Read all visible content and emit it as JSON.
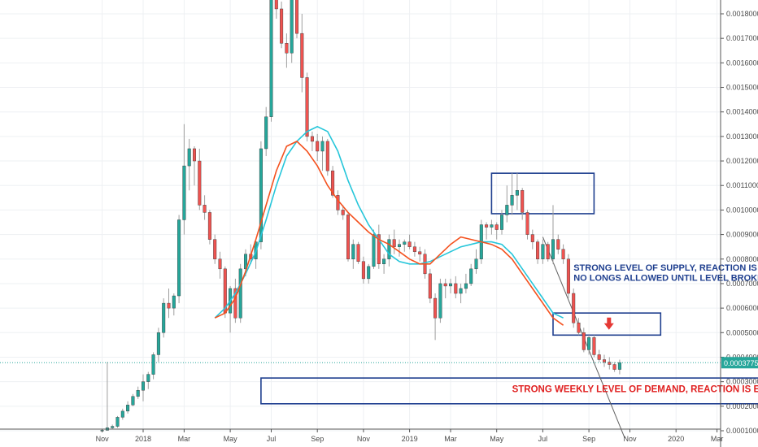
{
  "chart_data": {
    "type": "candlestick",
    "timeframe": "weekly",
    "y_axis_side": "right",
    "ylim": [
      0.0001,
      0.00188
    ],
    "x_ticks": [
      {
        "label": "Nov",
        "week": -8
      },
      {
        "label": "2018",
        "week": 0
      },
      {
        "label": "Mar",
        "week": 8
      },
      {
        "label": "May",
        "week": 17
      },
      {
        "label": "Jul",
        "week": 25
      },
      {
        "label": "Sep",
        "week": 34
      },
      {
        "label": "Nov",
        "week": 43
      },
      {
        "label": "2019",
        "week": 52
      },
      {
        "label": "Mar",
        "week": 60
      },
      {
        "label": "May",
        "week": 69
      },
      {
        "label": "Jul",
        "week": 78
      },
      {
        "label": "Sep",
        "week": 87
      },
      {
        "label": "Nov",
        "week": 95
      },
      {
        "label": "2020",
        "week": 104
      },
      {
        "label": "Mar",
        "week": 112
      }
    ],
    "y_ticks": [
      "0.0001000",
      "0.0002000",
      "0.0003000",
      "0.0004000",
      "0.0005000",
      "0.0006000",
      "0.0007000",
      "0.0008000",
      "0.0009000",
      "0.0010000",
      "0.0011000",
      "0.0012000",
      "0.0013000",
      "0.0014000",
      "0.0015000",
      "0.0016000",
      "0.0017000",
      "0.0018000"
    ],
    "last_price": {
      "label": "0.0003775",
      "value": 0.0003775
    },
    "candles_ohlc": [
      [
        0.0001,
        0.000105,
        9.8e-05,
        0.000102
      ],
      [
        0.000102,
        0.00038,
        0.0001,
        0.000112
      ],
      [
        0.000112,
        0.000125,
        0.000105,
        0.000118
      ],
      [
        0.000118,
        0.00016,
        0.000112,
        0.000155
      ],
      [
        0.000155,
        0.00019,
        0.000145,
        0.00018
      ],
      [
        0.00018,
        0.00022,
        0.00017,
        0.000205
      ],
      [
        0.000205,
        0.00025,
        0.0002,
        0.00024
      ],
      [
        0.00024,
        0.00028,
        0.00023,
        0.000265
      ],
      [
        0.000265,
        0.00033,
        0.00022,
        0.0003
      ],
      [
        0.0003,
        0.00034,
        0.00027,
        0.00033
      ],
      [
        0.00033,
        0.00042,
        0.00031,
        0.00041
      ],
      [
        0.00041,
        0.00052,
        0.00038,
        0.0005
      ],
      [
        0.0005,
        0.00064,
        0.00048,
        0.00062
      ],
      [
        0.00062,
        0.00068,
        0.00056,
        0.0006
      ],
      [
        0.0006,
        0.00066,
        0.00057,
        0.00065
      ],
      [
        0.00065,
        0.00098,
        0.00062,
        0.00096
      ],
      [
        0.00096,
        0.00135,
        0.0009,
        0.00118
      ],
      [
        0.00118,
        0.00129,
        0.00108,
        0.00125
      ],
      [
        0.00125,
        0.00126,
        0.0011,
        0.0012
      ],
      [
        0.0012,
        0.00125,
        0.001,
        0.00102
      ],
      [
        0.00102,
        0.00106,
        0.00096,
        0.00099
      ],
      [
        0.00099,
        0.001,
        0.00086,
        0.00088
      ],
      [
        0.00088,
        0.0009,
        0.00078,
        0.0008
      ],
      [
        0.0008,
        0.00083,
        0.00072,
        0.00076
      ],
      [
        0.00076,
        0.00077,
        0.00056,
        0.00058
      ],
      [
        0.00058,
        0.00069,
        0.0005,
        0.00068
      ],
      [
        0.00068,
        0.00072,
        0.00054,
        0.00056
      ],
      [
        0.00056,
        0.00078,
        0.00054,
        0.00076
      ],
      [
        0.00076,
        0.00084,
        0.00073,
        0.00082
      ],
      [
        0.00082,
        0.00086,
        0.00078,
        0.0008
      ],
      [
        0.0008,
        0.00088,
        0.00076,
        0.00087
      ],
      [
        0.00087,
        0.00128,
        0.00084,
        0.00125
      ],
      [
        0.00125,
        0.00142,
        0.00122,
        0.00138
      ],
      [
        0.00138,
        0.0019,
        0.00136,
        0.00188
      ],
      [
        0.00188,
        0.00195,
        0.00178,
        0.00182
      ],
      [
        0.00182,
        0.00185,
        0.00166,
        0.00168
      ],
      [
        0.00168,
        0.00172,
        0.00158,
        0.00164
      ],
      [
        0.00164,
        0.00188,
        0.0016,
        0.00186
      ],
      [
        0.00186,
        0.00195,
        0.0017,
        0.00172
      ],
      [
        0.00172,
        0.0018,
        0.00148,
        0.00154
      ],
      [
        0.00154,
        0.00156,
        0.00128,
        0.0013
      ],
      [
        0.0013,
        0.00132,
        0.00124,
        0.00128
      ],
      [
        0.00128,
        0.00131,
        0.0012,
        0.00124
      ],
      [
        0.00124,
        0.0013,
        0.00116,
        0.00128
      ],
      [
        0.00128,
        0.00129,
        0.00114,
        0.00116
      ],
      [
        0.00116,
        0.00118,
        0.00105,
        0.00106
      ],
      [
        0.00106,
        0.00108,
        0.00098,
        0.001
      ],
      [
        0.001,
        0.00102,
        0.00096,
        0.00098
      ],
      [
        0.00098,
        0.00099,
        0.00079,
        0.0008
      ],
      [
        0.0008,
        0.00088,
        0.00076,
        0.00086
      ],
      [
        0.00086,
        0.00087,
        0.00078,
        0.00079
      ],
      [
        0.00079,
        0.00081,
        0.0007,
        0.00072
      ],
      [
        0.00072,
        0.00078,
        0.0007,
        0.00077
      ],
      [
        0.00077,
        0.00092,
        0.00076,
        0.0009
      ],
      [
        0.0009,
        0.00094,
        0.00076,
        0.00078
      ],
      [
        0.00078,
        0.00082,
        0.00074,
        0.0008
      ],
      [
        0.0008,
        0.0009,
        0.00077,
        0.00088
      ],
      [
        0.00088,
        0.00092,
        0.00082,
        0.00085
      ],
      [
        0.00085,
        0.00088,
        0.00081,
        0.00086
      ],
      [
        0.00086,
        0.00088,
        0.00083,
        0.00087
      ],
      [
        0.00087,
        0.0009,
        0.00084,
        0.00085
      ],
      [
        0.00085,
        0.00087,
        0.00081,
        0.00083
      ],
      [
        0.00083,
        0.00085,
        0.00079,
        0.00082
      ],
      [
        0.00082,
        0.00084,
        0.00072,
        0.00074
      ],
      [
        0.00074,
        0.00076,
        0.00062,
        0.00064
      ],
      [
        0.00064,
        0.00066,
        0.00047,
        0.00056
      ],
      [
        0.00056,
        0.00072,
        0.00054,
        0.0007
      ],
      [
        0.0007,
        0.00072,
        0.00064,
        0.00069
      ],
      [
        0.00069,
        0.00072,
        0.00066,
        0.0007
      ],
      [
        0.0007,
        0.00073,
        0.00064,
        0.00066
      ],
      [
        0.00066,
        0.0007,
        0.00062,
        0.00068
      ],
      [
        0.00068,
        0.00074,
        0.00066,
        0.0007
      ],
      [
        0.0007,
        0.00078,
        0.00069,
        0.00076
      ],
      [
        0.00076,
        0.00084,
        0.00074,
        0.0008
      ],
      [
        0.0008,
        0.00096,
        0.00078,
        0.00094
      ],
      [
        0.00094,
        0.00095,
        0.00088,
        0.00093
      ],
      [
        0.00093,
        0.00096,
        0.0009,
        0.00094
      ],
      [
        0.00094,
        0.00095,
        0.00088,
        0.00092
      ],
      [
        0.00092,
        0.001,
        0.0009,
        0.00098
      ],
      [
        0.00098,
        0.0011,
        0.00095,
        0.00102
      ],
      [
        0.00102,
        0.00115,
        0.00098,
        0.00106
      ],
      [
        0.00106,
        0.00115,
        0.001,
        0.00108
      ],
      [
        0.00108,
        0.00109,
        0.00096,
        0.00099
      ],
      [
        0.00099,
        0.001,
        0.00088,
        0.0009
      ],
      [
        0.0009,
        0.00092,
        0.00084,
        0.00087
      ],
      [
        0.00087,
        0.00088,
        0.00078,
        0.0008
      ],
      [
        0.0008,
        0.00088,
        0.00078,
        0.00086
      ],
      [
        0.00086,
        0.00087,
        0.00079,
        0.0008
      ],
      [
        0.0008,
        0.00102,
        0.00078,
        0.00088
      ],
      [
        0.00088,
        0.0009,
        0.00082,
        0.00084
      ],
      [
        0.00084,
        0.00086,
        0.00078,
        0.0008
      ],
      [
        0.0008,
        0.00082,
        0.00064,
        0.00066
      ],
      [
        0.00066,
        0.00068,
        0.00052,
        0.00054
      ],
      [
        0.00054,
        0.00056,
        0.00049,
        0.0005
      ],
      [
        0.0005,
        0.00052,
        0.00042,
        0.00043
      ],
      [
        0.00043,
        0.00049,
        0.00041,
        0.00048
      ],
      [
        0.00048,
        0.00049,
        0.0004,
        0.00041
      ],
      [
        0.00041,
        0.00043,
        0.00038,
        0.00039
      ],
      [
        0.00039,
        0.00041,
        0.00036,
        0.00038
      ],
      [
        0.00038,
        0.0004,
        0.00035,
        0.00037
      ],
      [
        0.00037,
        0.00038,
        0.00034,
        0.00035
      ],
      [
        0.00035,
        0.00039,
        0.00033,
        0.000378
      ]
    ],
    "ema_fast": [
      [
        14,
        0.00056
      ],
      [
        16,
        0.00058
      ],
      [
        18,
        0.00064
      ],
      [
        20,
        0.00075
      ],
      [
        22,
        0.00088
      ],
      [
        24,
        0.00102
      ],
      [
        26,
        0.00116
      ],
      [
        28,
        0.00126
      ],
      [
        30,
        0.00128
      ],
      [
        32,
        0.00124
      ],
      [
        34,
        0.00118
      ],
      [
        36,
        0.0011
      ],
      [
        38,
        0.00104
      ],
      [
        40,
        0.00099
      ],
      [
        42,
        0.00095
      ],
      [
        44,
        0.00091
      ],
      [
        46,
        0.00088
      ],
      [
        48,
        0.00086
      ],
      [
        50,
        0.00083
      ],
      [
        52,
        0.0008
      ],
      [
        54,
        0.00078
      ],
      [
        56,
        0.00078
      ],
      [
        58,
        0.00082
      ],
      [
        60,
        0.00086
      ],
      [
        62,
        0.00089
      ],
      [
        64,
        0.00088
      ],
      [
        66,
        0.00087
      ],
      [
        68,
        0.00086
      ],
      [
        70,
        0.00084
      ],
      [
        72,
        0.0008
      ],
      [
        74,
        0.00074
      ],
      [
        76,
        0.00068
      ],
      [
        78,
        0.00062
      ],
      [
        80,
        0.00056
      ],
      [
        82,
        0.00053
      ]
    ],
    "ema_slow": [
      [
        14,
        0.00056
      ],
      [
        16,
        0.0006
      ],
      [
        18,
        0.00066
      ],
      [
        20,
        0.00074
      ],
      [
        22,
        0.00083
      ],
      [
        24,
        0.00096
      ],
      [
        26,
        0.0011
      ],
      [
        28,
        0.00122
      ],
      [
        30,
        0.00128
      ],
      [
        32,
        0.00132
      ],
      [
        34,
        0.00134
      ],
      [
        36,
        0.00132
      ],
      [
        38,
        0.00124
      ],
      [
        40,
        0.00112
      ],
      [
        42,
        0.00102
      ],
      [
        44,
        0.00094
      ],
      [
        46,
        0.00088
      ],
      [
        48,
        0.00082
      ],
      [
        50,
        0.00079
      ],
      [
        52,
        0.00078
      ],
      [
        54,
        0.00078
      ],
      [
        56,
        0.00079
      ],
      [
        58,
        0.00081
      ],
      [
        60,
        0.00083
      ],
      [
        62,
        0.00085
      ],
      [
        64,
        0.00086
      ],
      [
        66,
        0.00087
      ],
      [
        68,
        0.00087
      ],
      [
        70,
        0.00086
      ],
      [
        72,
        0.00082
      ],
      [
        74,
        0.00076
      ],
      [
        76,
        0.0007
      ],
      [
        78,
        0.00064
      ],
      [
        80,
        0.00058
      ],
      [
        82,
        0.00056
      ]
    ],
    "zones": [
      {
        "name": "supply",
        "week_start": 68,
        "week_end": 88,
        "top": 0.00115,
        "bottom": 0.000985
      },
      {
        "name": "near",
        "week_start": 80,
        "week_end": 101,
        "top": 0.00058,
        "bottom": 0.00049
      },
      {
        "name": "demand",
        "week_start": 23,
        "week_end": 121,
        "top": 0.000315,
        "bottom": 0.00021
      }
    ],
    "trendline": {
      "from": [
        78,
        0.00089
      ],
      "to": [
        94,
        7e-05
      ]
    },
    "annotations": [
      {
        "text": "STRONG LEVEL OF SUPPLY, REACTION IS EXPECTED.",
        "week": 84,
        "value": 0.000752
      },
      {
        "text": "NO LONGS ALLOWED UNTIL LEVEL BROKEN",
        "week": 84,
        "value": 0.000712
      },
      {
        "text": "STRONG WEEKLY LEVEL OF DEMAND, REACTION IS EXPECTED, NO SHORTING ALLOWED.",
        "week": 72,
        "value": 0.000258
      }
    ],
    "colors": {
      "bull": "#26a69a",
      "bear": "#ef5350",
      "ema_fast": "#f4511e",
      "ema_slow": "#26c6da",
      "zone": "#1f3f8f",
      "arrow": "#e53935",
      "trend": "#616161"
    }
  }
}
